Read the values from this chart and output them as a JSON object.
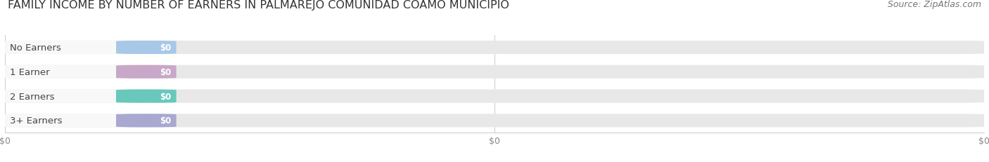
{
  "title": "FAMILY INCOME BY NUMBER OF EARNERS IN PALMAREJO COMUNIDAD COAMO MUNICIPIO",
  "source": "Source: ZipAtlas.com",
  "categories": [
    "No Earners",
    "1 Earner",
    "2 Earners",
    "3+ Earners"
  ],
  "values": [
    0,
    0,
    0,
    0
  ],
  "bar_colors": [
    "#a8c8e8",
    "#c8a8c8",
    "#68c8bc",
    "#a8a8d0"
  ],
  "background_color": "#ffffff",
  "bar_bg_color": "#e8e8e8",
  "label_bg_color": "#f5f5f5",
  "title_fontsize": 11.5,
  "source_fontsize": 9,
  "label_fontsize": 9.5,
  "value_fontsize": 8.5,
  "tick_label_color": "#888888",
  "tick_label_fontsize": 9
}
